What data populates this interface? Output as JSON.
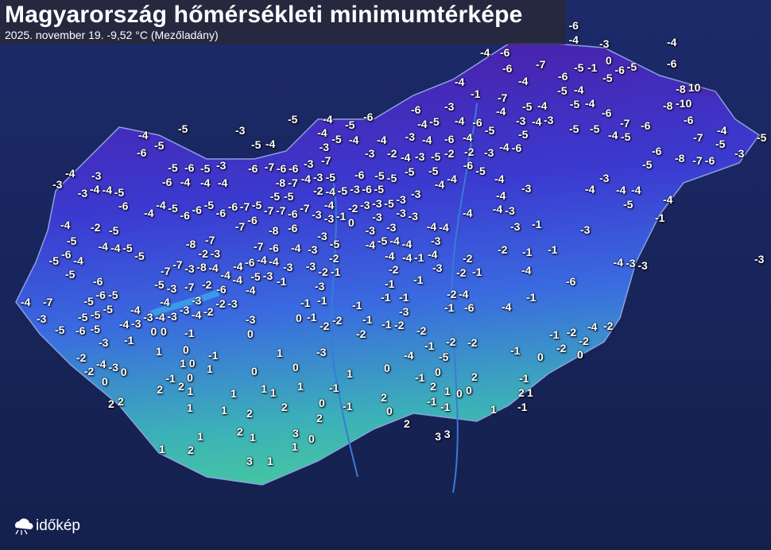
{
  "header": {
    "title": "Magyarország hőmérsékleti minimumtérképe",
    "subtitle": "2025. november 19.  -9,52 °C (Mezőladány)"
  },
  "logo": {
    "text": "időkép",
    "icon": "cloud-sun-icon"
  },
  "colors": {
    "background": "#17255a",
    "cold": "#5a1a9a",
    "mid": "#3a5ee0",
    "warm": "#3fc0b0"
  },
  "temperature_labels": [
    "-6",
    "-4",
    "-3",
    "-4",
    "-4",
    "-6",
    "0",
    "-5",
    "-6",
    "-7",
    "-5",
    "-1",
    "-6",
    "-6",
    "-4",
    "-4",
    "-6",
    "-5",
    "-8",
    "10",
    "-1",
    "-7",
    "-5",
    "-4",
    "-5",
    "-4",
    "-8",
    "-10",
    "-6",
    "-3",
    "-4",
    "-5",
    "-4",
    "-6",
    "-4",
    "-5",
    "-4",
    "-6",
    "-3",
    "-4",
    "-3",
    "-5",
    "-5",
    "-7",
    "-6",
    "-6",
    "-5",
    "-4",
    "-5",
    "-6",
    "-4",
    "-5",
    "-4",
    "-4",
    "-3",
    "-4",
    "-6",
    "-4",
    "-5",
    "-5",
    "-4",
    "-6",
    "-4",
    "-5",
    "-4",
    "-5",
    "-7",
    "-5",
    "-3",
    "-6",
    "-8",
    "-7",
    "-6",
    "-5",
    "-4",
    "-5",
    "-3",
    "-5",
    "-5",
    "-4",
    "-6",
    "-4",
    "-3",
    "-3",
    "-3",
    "-4",
    "-4",
    "-5",
    "-5",
    "-6",
    "-5",
    "-3",
    "-4",
    "-4",
    "-6",
    "-4",
    "-6",
    "-7",
    "-6",
    "-6",
    "-3",
    "-7",
    "-3",
    "-3",
    "-2",
    "-4",
    "-3",
    "-5",
    "-2",
    "-2",
    "-6",
    "-3",
    "-5",
    "-5",
    "-5",
    "-4",
    "-4",
    "-4",
    "-3",
    "-4",
    "-4",
    "-4",
    "-3",
    "-4",
    "-5",
    "-4",
    "-6",
    "-4",
    "-4",
    "-5",
    "-6",
    "-5",
    "-6",
    "-6",
    "-6",
    "-6",
    "-7",
    "-5",
    "-5",
    "-7",
    "-7",
    "-8",
    "-7",
    "-4",
    "-3",
    "-5",
    "-6",
    "-5",
    "-5",
    "-2",
    "-4",
    "-4",
    "-5",
    "-3",
    "-6",
    "-5",
    "-5",
    "-3",
    "-3",
    "-3",
    "-3",
    "-3",
    "-3",
    "-3",
    "-4",
    "-4",
    "-3",
    "-2",
    "-1",
    "-6",
    "-5",
    "-7",
    "-3",
    "-3",
    "-6",
    "-4",
    "-2",
    "-5",
    "-3",
    "-3",
    "0",
    "-8",
    "-7",
    "-4",
    "-4",
    "-3",
    "-1",
    "-3",
    "-1",
    "-3",
    "-5",
    "-4",
    "-4",
    "-5",
    "-5",
    "-8",
    "-7",
    "-5",
    "-4",
    "-4",
    "-4",
    "-3",
    "-2",
    "-1",
    "-1",
    "-7",
    "-6",
    "-4",
    "-3",
    "-5",
    "-2",
    "-3",
    "-6",
    "-4",
    "-5",
    "-7",
    "-7",
    "-8",
    "-4",
    "-4",
    "-6",
    "-4",
    "-4",
    "-3",
    "-3",
    "-3",
    "-2",
    "-4",
    "-4",
    "-1",
    "-4",
    "-3",
    "-2",
    "-2",
    "-1",
    "-4",
    "-4",
    "-3",
    "-3",
    "-3",
    "-5",
    "-6",
    "-5",
    "-7",
    "-3",
    "-2",
    "-6",
    "-4",
    "-4",
    "-5",
    "-4",
    "-1",
    "-2",
    "-1",
    "-2",
    "-1",
    "-1",
    "-3",
    "-6",
    "-4",
    "-7",
    "-6",
    "-5",
    "-5",
    "-5",
    "-4",
    "-3",
    "-3",
    "-2",
    "-3",
    "-1",
    "-1",
    "-2",
    "-4",
    "-1",
    "-1",
    "-1",
    "-1",
    "-3",
    "-1",
    "-6",
    "-4",
    "-3",
    "-5",
    "-5",
    "-5",
    "-6",
    "-5",
    "-4",
    "-3",
    "-3",
    "-4",
    "-2",
    "-4",
    "-3",
    "-3",
    "0",
    "0",
    "-4",
    "-3",
    "-1",
    "0",
    "-1",
    "-2",
    "-2",
    "-1",
    "-1",
    "-2",
    "-2",
    "-2",
    "-1",
    "-2",
    "-4",
    "-2",
    "-3",
    "-1",
    "1",
    "0",
    "0",
    "1",
    "-3",
    "-1",
    "-2",
    "-1",
    "-2",
    "-2",
    "-1",
    "0",
    "-2",
    "0",
    "-5",
    "-4",
    "-2",
    "-4",
    "-2",
    "-3",
    "0",
    "0",
    "1",
    "0",
    "1",
    "0",
    "0",
    "0",
    "1",
    "0",
    "0",
    "-1",
    "2",
    "-1",
    "-1",
    "2",
    "2",
    "2",
    "1",
    "1",
    "1",
    "1",
    "1",
    "-1",
    "2",
    "1",
    "0",
    "0",
    "2",
    "1",
    "2",
    "2",
    "1",
    "1",
    "2",
    "2",
    "0",
    "-1",
    "0",
    "-1",
    "-1",
    "1",
    "-1",
    "2",
    "2",
    "2",
    "1",
    "3",
    "0",
    "1",
    "3",
    "3",
    "1",
    "2",
    "1",
    "3",
    "1"
  ]
}
